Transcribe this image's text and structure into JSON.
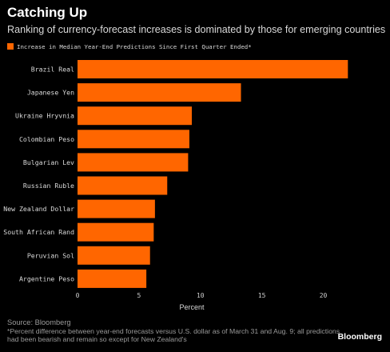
{
  "header": {
    "title": "Catching Up",
    "subtitle": "Ranking of currency-forecast increases is dominated by those for emerging countries"
  },
  "legend": {
    "label": "Increase in Median Year-End Predictions Since First Quarter Ended*",
    "color": "#ff6600"
  },
  "footer": {
    "source": "Source: Bloomberg",
    "footnote": "*Percent difference between year-end forecasts versus U.S. dollar as of March 31 and Aug. 9; all predictions had been bearish and remain so except for New Zealand's",
    "brand": "Bloomberg"
  },
  "chart_data": {
    "type": "bar",
    "orientation": "horizontal",
    "categories": [
      "Brazil Real",
      "Japanese Yen",
      "Ukraine Hryvnia",
      "Colombian Peso",
      "Bulgarian Lev",
      "Russian Ruble",
      "New Zealand Dollar",
      "South African Rand",
      "Peruvian Sol",
      "Argentine Peso"
    ],
    "series": [
      {
        "name": "Increase in Median Year-End Predictions Since First Quarter Ended*",
        "values": [
          22.0,
          13.3,
          9.3,
          9.1,
          9.0,
          7.3,
          6.3,
          6.2,
          5.9,
          5.6
        ],
        "color": "#ff6600"
      }
    ],
    "xticks": [
      "0",
      "5",
      "10",
      "15",
      "20"
    ],
    "xtick_values": [
      0,
      5,
      10,
      15,
      20
    ],
    "xlim": [
      0,
      22.5
    ],
    "xlabel": "Percent",
    "ylabel": "",
    "grid": false,
    "legend_position": "top-left"
  }
}
